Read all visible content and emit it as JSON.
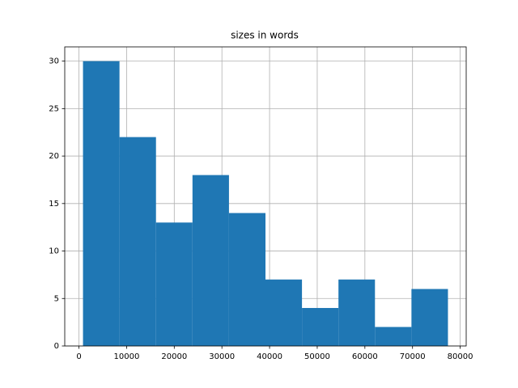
{
  "chart_data": {
    "type": "histogram",
    "title": "sizes in words",
    "bins": [
      850,
      8508,
      16166,
      23824,
      31482,
      39140,
      46798,
      54456,
      62114,
      69772,
      77430
    ],
    "values": [
      30,
      22,
      13,
      18,
      14,
      7,
      4,
      7,
      2,
      6
    ],
    "color": "#1f77b4",
    "xlim": [
      -2979,
      81259
    ],
    "xticks": [
      0,
      10000,
      20000,
      30000,
      40000,
      50000,
      60000,
      70000,
      80000
    ],
    "ylim": [
      0,
      31.5
    ],
    "yticks": [
      0,
      5,
      10,
      15,
      20,
      25,
      30
    ],
    "grid": true
  }
}
